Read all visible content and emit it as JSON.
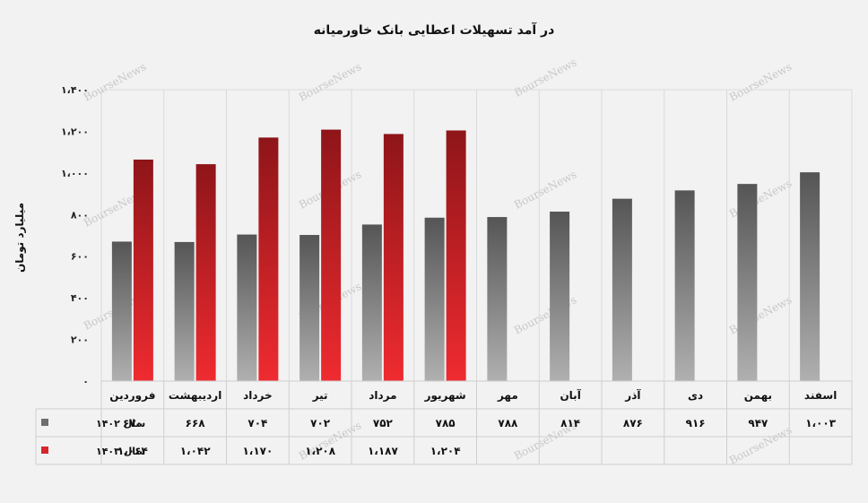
{
  "chart_data": {
    "type": "bar",
    "title": "در آمد تسهیلات اعطایی بانک خاورمیانه",
    "ylabel": "میلیارد تومان",
    "ylim": [
      0,
      1400
    ],
    "y_ticks": [
      "۰",
      "۲۰۰",
      "۴۰۰",
      "۶۰۰",
      "۸۰۰",
      "۱،۰۰۰",
      "۱،۲۰۰",
      "۱،۴۰۰"
    ],
    "y_tick_values": [
      0,
      200,
      400,
      600,
      800,
      1000,
      1200,
      1400
    ],
    "grid": true,
    "legend_position": "table-left",
    "categories": [
      "فروردین",
      "اردیبهشت",
      "خرداد",
      "تیر",
      "مرداد",
      "شهریور",
      "مهر",
      "آبان",
      "آذر",
      "دی",
      "بهمن",
      "اسفند"
    ],
    "series": [
      {
        "name": "سال ۱۴۰۲",
        "color": "#6e6e6e",
        "values": [
          670,
          668,
          704,
          702,
          752,
          785,
          788,
          814,
          876,
          916,
          947,
          1003
        ],
        "labels": [
          "۶۷۰",
          "۶۶۸",
          "۷۰۴",
          "۷۰۲",
          "۷۵۲",
          "۷۸۵",
          "۷۸۸",
          "۸۱۴",
          "۸۷۶",
          "۹۱۶",
          "۹۴۷",
          "۱،۰۰۳"
        ]
      },
      {
        "name": "سال ۱۴۰۳",
        "color": "#d6262b",
        "values": [
          1064,
          1042,
          1170,
          1208,
          1187,
          1204,
          null,
          null,
          null,
          null,
          null,
          null
        ],
        "labels": [
          "۱،۰۶۴",
          "۱،۰۴۲",
          "۱،۱۷۰",
          "۱،۲۰۸",
          "۱،۱۸۷",
          "۱،۲۰۴",
          "",
          "",
          "",
          "",
          "",
          ""
        ]
      }
    ],
    "watermark": "BourseNews"
  }
}
